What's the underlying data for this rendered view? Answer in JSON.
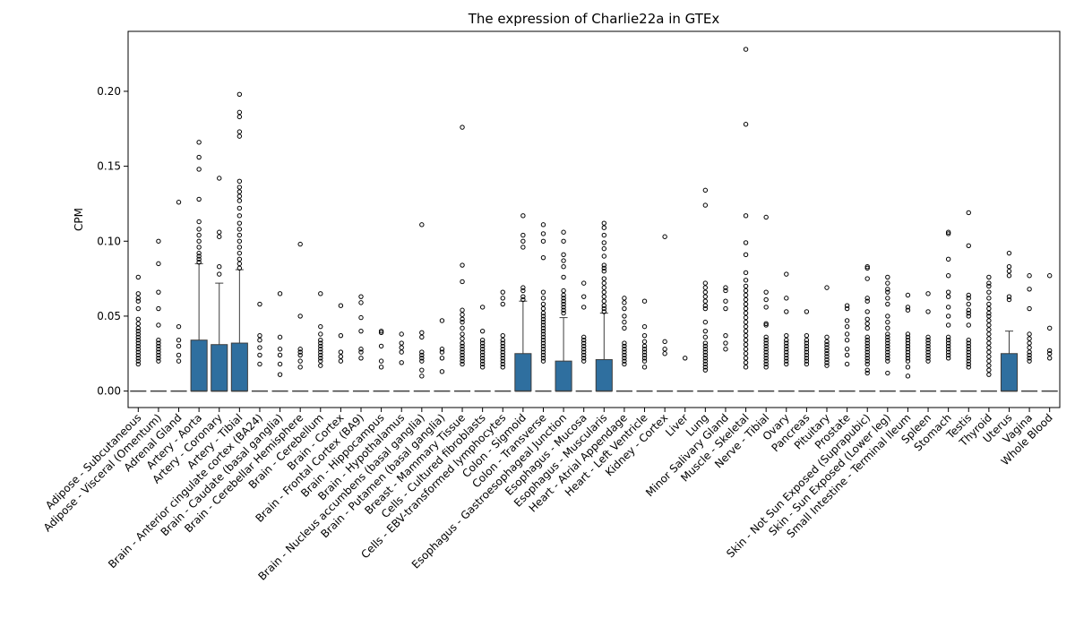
{
  "chart_data": {
    "type": "box",
    "title": "The expression of Charlie22a in GTEx",
    "xlabel": "",
    "ylabel": "CPM",
    "ylim": [
      -0.011,
      0.24
    ],
    "yticks": [
      0.0,
      0.05,
      0.1,
      0.15,
      0.2
    ],
    "ytick_labels": [
      "0.00",
      "0.05",
      "0.10",
      "0.15",
      "0.20"
    ],
    "box_color": "#2f6f9f",
    "categories": [
      "Adipose - Subcutaneous",
      "Adipose - Visceral (Omentum)",
      "Adrenal Gland",
      "Artery - Aorta",
      "Artery - Coronary",
      "Artery - Tibial",
      "Brain - Anterior cingulate cortex (BA24)",
      "Brain - Caudate (basal ganglia)",
      "Brain - Cerebellar Hemisphere",
      "Brain - Cerebellum",
      "Brain - Cortex",
      "Brain - Frontal Cortex (BA9)",
      "Brain - Hippocampus",
      "Brain - Hypothalamus",
      "Brain - Nucleus accumbens (basal ganglia)",
      "Brain - Putamen (basal ganglia)",
      "Breast - Mammary Tissue",
      "Cells - Cultured fibroblasts",
      "Cells - EBV-transformed lymphocytes",
      "Colon - Sigmoid",
      "Colon - Transverse",
      "Esophagus - Gastroesophageal Junction",
      "Esophagus - Mucosa",
      "Esophagus - Muscularis",
      "Heart - Atrial Appendage",
      "Heart - Left Ventricle",
      "Kidney - Cortex",
      "Liver",
      "Lung",
      "Minor Salivary Gland",
      "Muscle - Skeletal",
      "Nerve - Tibial",
      "Ovary",
      "Pancreas",
      "Pituitary",
      "Prostate",
      "Skin - Not Sun Exposed (Suprapubic)",
      "Skin - Sun Exposed (Lower leg)",
      "Small Intestine - Terminal Ileum",
      "Spleen",
      "Stomach",
      "Testis",
      "Thyroid",
      "Uterus",
      "Vagina",
      "Whole Blood"
    ],
    "boxes": [
      {
        "q1": 0,
        "median": 0,
        "q3": 0,
        "whisker_low": 0,
        "whisker_high": 0,
        "outliers": [
          0.076,
          0.065,
          0.062,
          0.06,
          0.055,
          0.048,
          0.045,
          0.042,
          0.04,
          0.038,
          0.036,
          0.034,
          0.032,
          0.03,
          0.028,
          0.026,
          0.024,
          0.022,
          0.02,
          0.018
        ]
      },
      {
        "q1": 0,
        "median": 0,
        "q3": 0,
        "whisker_low": 0,
        "whisker_high": 0,
        "outliers": [
          0.1,
          0.085,
          0.066,
          0.055,
          0.044,
          0.034,
          0.032,
          0.03,
          0.028,
          0.026,
          0.024,
          0.022,
          0.02
        ]
      },
      {
        "q1": 0,
        "median": 0,
        "q3": 0,
        "whisker_low": 0,
        "whisker_high": 0,
        "outliers": [
          0.126,
          0.043,
          0.034,
          0.03,
          0.024,
          0.02
        ]
      },
      {
        "q1": 0,
        "median": 0,
        "q3": 0.034,
        "whisker_low": 0,
        "whisker_high": 0.085,
        "outliers": [
          0.166,
          0.156,
          0.148,
          0.128,
          0.113,
          0.108,
          0.104,
          0.1,
          0.096,
          0.092,
          0.09,
          0.088,
          0.086
        ]
      },
      {
        "q1": 0,
        "median": 0,
        "q3": 0.031,
        "whisker_low": 0,
        "whisker_high": 0.072,
        "outliers": [
          0.142,
          0.106,
          0.103,
          0.083,
          0.078
        ]
      },
      {
        "q1": 0,
        "median": 0,
        "q3": 0.032,
        "whisker_low": 0,
        "whisker_high": 0.081,
        "outliers": [
          0.198,
          0.186,
          0.183,
          0.173,
          0.17,
          0.14,
          0.136,
          0.133,
          0.13,
          0.127,
          0.122,
          0.117,
          0.112,
          0.108,
          0.104,
          0.1,
          0.096,
          0.092,
          0.088,
          0.085,
          0.082
        ]
      },
      {
        "q1": 0,
        "median": 0,
        "q3": 0,
        "whisker_low": 0,
        "whisker_high": 0,
        "outliers": [
          0.058,
          0.037,
          0.034,
          0.029,
          0.024,
          0.018
        ]
      },
      {
        "q1": 0,
        "median": 0,
        "q3": 0,
        "whisker_low": 0,
        "whisker_high": 0,
        "outliers": [
          0.065,
          0.036,
          0.028,
          0.024,
          0.018,
          0.011
        ]
      },
      {
        "q1": 0,
        "median": 0,
        "q3": 0,
        "whisker_low": 0,
        "whisker_high": 0,
        "outliers": [
          0.098,
          0.05,
          0.028,
          0.026,
          0.024,
          0.02,
          0.016
        ]
      },
      {
        "q1": 0,
        "median": 0,
        "q3": 0,
        "whisker_low": 0,
        "whisker_high": 0,
        "outliers": [
          0.065,
          0.043,
          0.038,
          0.034,
          0.032,
          0.03,
          0.028,
          0.026,
          0.024,
          0.022,
          0.02,
          0.017
        ]
      },
      {
        "q1": 0,
        "median": 0,
        "q3": 0,
        "whisker_low": 0,
        "whisker_high": 0,
        "outliers": [
          0.057,
          0.037,
          0.026,
          0.023,
          0.02
        ]
      },
      {
        "q1": 0,
        "median": 0,
        "q3": 0,
        "whisker_low": 0,
        "whisker_high": 0,
        "outliers": [
          0.063,
          0.059,
          0.049,
          0.04,
          0.028,
          0.026,
          0.022
        ]
      },
      {
        "q1": 0,
        "median": 0,
        "q3": 0,
        "whisker_low": 0,
        "whisker_high": 0,
        "outliers": [
          0.04,
          0.039,
          0.03,
          0.02,
          0.016
        ]
      },
      {
        "q1": 0,
        "median": 0,
        "q3": 0,
        "whisker_low": 0,
        "whisker_high": 0,
        "outliers": [
          0.038,
          0.032,
          0.029,
          0.026,
          0.019
        ]
      },
      {
        "q1": 0,
        "median": 0,
        "q3": 0,
        "whisker_low": 0,
        "whisker_high": 0,
        "outliers": [
          0.111,
          0.039,
          0.036,
          0.026,
          0.024,
          0.022,
          0.02,
          0.014,
          0.01
        ]
      },
      {
        "q1": 0,
        "median": 0,
        "q3": 0,
        "whisker_low": 0,
        "whisker_high": 0,
        "outliers": [
          0.047,
          0.028,
          0.026,
          0.022,
          0.013
        ]
      },
      {
        "q1": 0,
        "median": 0,
        "q3": 0,
        "whisker_low": 0,
        "whisker_high": 0,
        "outliers": [
          0.176,
          0.084,
          0.073,
          0.054,
          0.051,
          0.048,
          0.046,
          0.042,
          0.038,
          0.035,
          0.032,
          0.03,
          0.028,
          0.026,
          0.024,
          0.022,
          0.02,
          0.018
        ]
      },
      {
        "q1": 0,
        "median": 0,
        "q3": 0,
        "whisker_low": 0,
        "whisker_high": 0,
        "outliers": [
          0.056,
          0.04,
          0.034,
          0.032,
          0.03,
          0.028,
          0.026,
          0.024,
          0.022,
          0.02,
          0.018,
          0.016
        ]
      },
      {
        "q1": 0,
        "median": 0,
        "q3": 0,
        "whisker_low": 0,
        "whisker_high": 0,
        "outliers": [
          0.066,
          0.062,
          0.058,
          0.037,
          0.034,
          0.032,
          0.03,
          0.028,
          0.026,
          0.024,
          0.022,
          0.02,
          0.018,
          0.016
        ]
      },
      {
        "q1": 0,
        "median": 0,
        "q3": 0.025,
        "whisker_low": 0,
        "whisker_high": 0.06,
        "outliers": [
          0.117,
          0.104,
          0.1,
          0.096,
          0.069,
          0.067,
          0.063,
          0.061
        ]
      },
      {
        "q1": 0,
        "median": 0,
        "q3": 0,
        "whisker_low": 0,
        "whisker_high": 0,
        "outliers": [
          0.111,
          0.105,
          0.1,
          0.089,
          0.066,
          0.062,
          0.058,
          0.055,
          0.052,
          0.05,
          0.048,
          0.046,
          0.044,
          0.042,
          0.04,
          0.038,
          0.036,
          0.034,
          0.032,
          0.03,
          0.028,
          0.026,
          0.024,
          0.022,
          0.02
        ]
      },
      {
        "q1": 0,
        "median": 0,
        "q3": 0.02,
        "whisker_low": 0,
        "whisker_high": 0.049,
        "outliers": [
          0.106,
          0.1,
          0.091,
          0.087,
          0.083,
          0.076,
          0.067,
          0.064,
          0.062,
          0.06,
          0.058,
          0.056,
          0.054,
          0.052
        ]
      },
      {
        "q1": 0,
        "median": 0,
        "q3": 0,
        "whisker_low": 0,
        "whisker_high": 0,
        "outliers": [
          0.072,
          0.063,
          0.056,
          0.036,
          0.034,
          0.032,
          0.03,
          0.028,
          0.026,
          0.024,
          0.022,
          0.02
        ]
      },
      {
        "q1": 0,
        "median": 0,
        "q3": 0.021,
        "whisker_low": 0,
        "whisker_high": 0.052,
        "outliers": [
          0.112,
          0.109,
          0.104,
          0.099,
          0.095,
          0.09,
          0.084,
          0.082,
          0.08,
          0.075,
          0.072,
          0.069,
          0.066,
          0.063,
          0.06,
          0.057,
          0.055,
          0.053
        ]
      },
      {
        "q1": 0,
        "median": 0,
        "q3": 0,
        "whisker_low": 0,
        "whisker_high": 0,
        "outliers": [
          0.062,
          0.059,
          0.055,
          0.05,
          0.046,
          0.042,
          0.032,
          0.03,
          0.028,
          0.026,
          0.024,
          0.022,
          0.02,
          0.018
        ]
      },
      {
        "q1": 0,
        "median": 0,
        "q3": 0,
        "whisker_low": 0,
        "whisker_high": 0,
        "outliers": [
          0.06,
          0.043,
          0.037,
          0.033,
          0.03,
          0.028,
          0.026,
          0.024,
          0.022,
          0.02,
          0.016
        ]
      },
      {
        "q1": 0,
        "median": 0,
        "q3": 0,
        "whisker_low": 0,
        "whisker_high": 0,
        "outliers": [
          0.103,
          0.033,
          0.028,
          0.025
        ]
      },
      {
        "q1": 0,
        "median": 0,
        "q3": 0,
        "whisker_low": 0,
        "whisker_high": 0,
        "outliers": [
          0.022
        ]
      },
      {
        "q1": 0,
        "median": 0,
        "q3": 0,
        "whisker_low": 0,
        "whisker_high": 0,
        "outliers": [
          0.134,
          0.124,
          0.072,
          0.069,
          0.066,
          0.063,
          0.06,
          0.057,
          0.055,
          0.046,
          0.04,
          0.036,
          0.032,
          0.03,
          0.028,
          0.026,
          0.024,
          0.022,
          0.02,
          0.018,
          0.016,
          0.014
        ]
      },
      {
        "q1": 0,
        "median": 0,
        "q3": 0,
        "whisker_low": 0,
        "whisker_high": 0,
        "outliers": [
          0.069,
          0.067,
          0.06,
          0.055,
          0.037,
          0.032,
          0.028
        ]
      },
      {
        "q1": 0,
        "median": 0,
        "q3": 0,
        "whisker_low": 0,
        "whisker_high": 0,
        "outliers": [
          0.228,
          0.178,
          0.117,
          0.099,
          0.091,
          0.079,
          0.074,
          0.07,
          0.067,
          0.064,
          0.061,
          0.058,
          0.055,
          0.052,
          0.049,
          0.046,
          0.043,
          0.04,
          0.037,
          0.034,
          0.031,
          0.028,
          0.025,
          0.022,
          0.019,
          0.016
        ]
      },
      {
        "q1": 0,
        "median": 0,
        "q3": 0,
        "whisker_low": 0,
        "whisker_high": 0,
        "outliers": [
          0.116,
          0.066,
          0.061,
          0.056,
          0.045,
          0.044,
          0.036,
          0.034,
          0.032,
          0.03,
          0.028,
          0.026,
          0.024,
          0.022,
          0.02,
          0.018,
          0.016
        ]
      },
      {
        "q1": 0,
        "median": 0,
        "q3": 0,
        "whisker_low": 0,
        "whisker_high": 0,
        "outliers": [
          0.078,
          0.062,
          0.053,
          0.037,
          0.034,
          0.032,
          0.03,
          0.028,
          0.026,
          0.024,
          0.022,
          0.02,
          0.018
        ]
      },
      {
        "q1": 0,
        "median": 0,
        "q3": 0,
        "whisker_low": 0,
        "whisker_high": 0,
        "outliers": [
          0.053,
          0.037,
          0.034,
          0.032,
          0.03,
          0.028,
          0.026,
          0.024,
          0.022,
          0.02,
          0.018
        ]
      },
      {
        "q1": 0,
        "median": 0,
        "q3": 0,
        "whisker_low": 0,
        "whisker_high": 0,
        "outliers": [
          0.069,
          0.036,
          0.033,
          0.031,
          0.029,
          0.027,
          0.025,
          0.023,
          0.021,
          0.019,
          0.017
        ]
      },
      {
        "q1": 0,
        "median": 0,
        "q3": 0,
        "whisker_low": 0,
        "whisker_high": 0,
        "outliers": [
          0.057,
          0.055,
          0.047,
          0.043,
          0.038,
          0.034,
          0.028,
          0.024,
          0.018
        ]
      },
      {
        "q1": 0,
        "median": 0,
        "q3": 0,
        "whisker_low": 0,
        "whisker_high": 0,
        "outliers": [
          0.083,
          0.082,
          0.075,
          0.062,
          0.06,
          0.053,
          0.048,
          0.045,
          0.042,
          0.036,
          0.034,
          0.032,
          0.03,
          0.028,
          0.026,
          0.024,
          0.022,
          0.02,
          0.018,
          0.014,
          0.012
        ]
      },
      {
        "q1": 0,
        "median": 0,
        "q3": 0,
        "whisker_low": 0,
        "whisker_high": 0,
        "outliers": [
          0.076,
          0.072,
          0.068,
          0.066,
          0.062,
          0.058,
          0.05,
          0.046,
          0.042,
          0.038,
          0.036,
          0.034,
          0.032,
          0.03,
          0.028,
          0.026,
          0.024,
          0.022,
          0.02,
          0.012
        ]
      },
      {
        "q1": 0,
        "median": 0,
        "q3": 0,
        "whisker_low": 0,
        "whisker_high": 0,
        "outliers": [
          0.064,
          0.056,
          0.054,
          0.038,
          0.036,
          0.034,
          0.032,
          0.03,
          0.028,
          0.026,
          0.024,
          0.022,
          0.02,
          0.016,
          0.01
        ]
      },
      {
        "q1": 0,
        "median": 0,
        "q3": 0,
        "whisker_low": 0,
        "whisker_high": 0,
        "outliers": [
          0.065,
          0.053,
          0.036,
          0.034,
          0.032,
          0.03,
          0.028,
          0.026,
          0.024,
          0.022,
          0.02
        ]
      },
      {
        "q1": 0,
        "median": 0,
        "q3": 0,
        "whisker_low": 0,
        "whisker_high": 0,
        "outliers": [
          0.106,
          0.105,
          0.088,
          0.077,
          0.066,
          0.063,
          0.056,
          0.05,
          0.044,
          0.036,
          0.034,
          0.032,
          0.03,
          0.028,
          0.026,
          0.024,
          0.022
        ]
      },
      {
        "q1": 0,
        "median": 0,
        "q3": 0,
        "whisker_low": 0,
        "whisker_high": 0,
        "outliers": [
          0.119,
          0.097,
          0.064,
          0.062,
          0.058,
          0.054,
          0.052,
          0.05,
          0.044,
          0.034,
          0.032,
          0.03,
          0.028,
          0.026,
          0.024,
          0.022,
          0.02,
          0.018,
          0.016
        ]
      },
      {
        "q1": 0,
        "median": 0,
        "q3": 0,
        "whisker_low": 0,
        "whisker_high": 0,
        "outliers": [
          0.076,
          0.072,
          0.07,
          0.066,
          0.062,
          0.058,
          0.055,
          0.052,
          0.05,
          0.047,
          0.044,
          0.041,
          0.038,
          0.035,
          0.032,
          0.029,
          0.026,
          0.023,
          0.02,
          0.017,
          0.014,
          0.011
        ]
      },
      {
        "q1": 0,
        "median": 0,
        "q3": 0.025,
        "whisker_low": 0,
        "whisker_high": 0.04,
        "outliers": [
          0.092,
          0.083,
          0.08,
          0.077,
          0.063,
          0.061
        ]
      },
      {
        "q1": 0,
        "median": 0,
        "q3": 0,
        "whisker_low": 0,
        "whisker_high": 0,
        "outliers": [
          0.077,
          0.068,
          0.055,
          0.038,
          0.035,
          0.032,
          0.029,
          0.026,
          0.024,
          0.022,
          0.02
        ]
      },
      {
        "q1": 0,
        "median": 0,
        "q3": 0,
        "whisker_low": 0,
        "whisker_high": 0,
        "outliers": [
          0.077,
          0.042,
          0.027,
          0.025,
          0.022
        ]
      }
    ]
  }
}
